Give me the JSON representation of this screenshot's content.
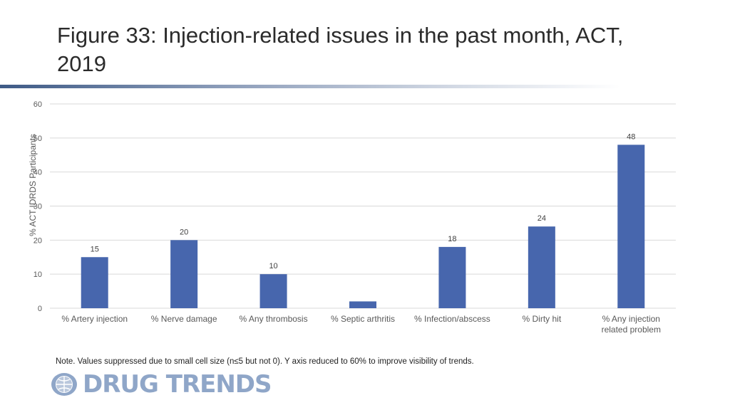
{
  "page": {
    "title": "Figure 33: Injection-related issues in the past month, ACT, 2019",
    "note": "Note. Values suppressed due to small cell size (n≤5 but not 0). Y axis reduced to 60% to improve visibility of trends.",
    "logo_text": "DRUG TRENDS"
  },
  "colors": {
    "bar": "#4766ad",
    "grid": "#d9d9d9",
    "axis_text": "#595959",
    "label_text": "#404040"
  },
  "chart_data": {
    "type": "bar",
    "title": "Figure 33: Injection-related issues in the past month, ACT, 2019",
    "xlabel": "",
    "ylabel": "% ACT IDRDS Participants",
    "ylim": [
      0,
      60
    ],
    "yticks": [
      0,
      10,
      20,
      30,
      40,
      50,
      60
    ],
    "grid": true,
    "categories": [
      [
        "% Artery injection"
      ],
      [
        "% Nerve damage"
      ],
      [
        "% Any thrombosis"
      ],
      [
        "% Septic arthritis"
      ],
      [
        "% Infection/abscess"
      ],
      [
        "% Dirty hit"
      ],
      [
        "% Any injection",
        "related problem"
      ]
    ],
    "values": [
      15,
      20,
      10,
      2,
      18,
      24,
      48
    ],
    "data_labels": [
      "15",
      "20",
      "10",
      "",
      "18",
      "24",
      "48"
    ]
  }
}
